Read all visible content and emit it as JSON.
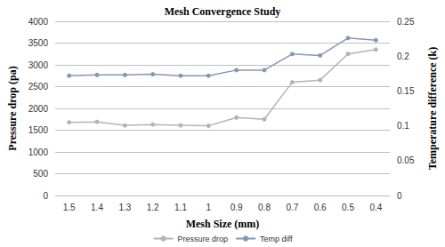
{
  "chart_data": {
    "type": "line",
    "title": "Mesh Convergence Study",
    "x_label": "Mesh Size (mm)",
    "y_label": "Pressure drop (pa)",
    "y2_label": "Temperature difference (k)",
    "categories": [
      "1.5",
      "1.4",
      "1.3",
      "1.2",
      "1.1",
      "1",
      "0.9",
      "0.8",
      "0.7",
      "0.6",
      "0.5",
      "0.4"
    ],
    "series": [
      {
        "name": "Pressure drop",
        "color": "#b4b4b4",
        "marker": "circle",
        "line_style": "solid",
        "values": [
          1680,
          1690,
          1610,
          1630,
          1610,
          1600,
          1790,
          1750,
          2600,
          2650,
          3250,
          3350
        ]
      },
      {
        "name": "Temp diff",
        "color": "#8497b5",
        "marker": "circle",
        "line_style": "solid",
        "axis": "y2",
        "values": [
          0.172,
          0.173,
          0.173,
          0.174,
          0.172,
          0.172,
          0.18,
          0.18,
          0.203,
          0.201,
          0.226,
          0.223
        ]
      }
    ],
    "ylim": [
      0,
      4000
    ],
    "yticks": [
      0,
      500,
      1000,
      1500,
      2000,
      2500,
      3000,
      3500,
      4000
    ],
    "y2lim": [
      0,
      0.25
    ],
    "y2ticks": [
      0,
      0.05,
      0.1,
      0.15,
      0.2,
      0.25
    ],
    "grid": true,
    "legend": "bottom"
  }
}
